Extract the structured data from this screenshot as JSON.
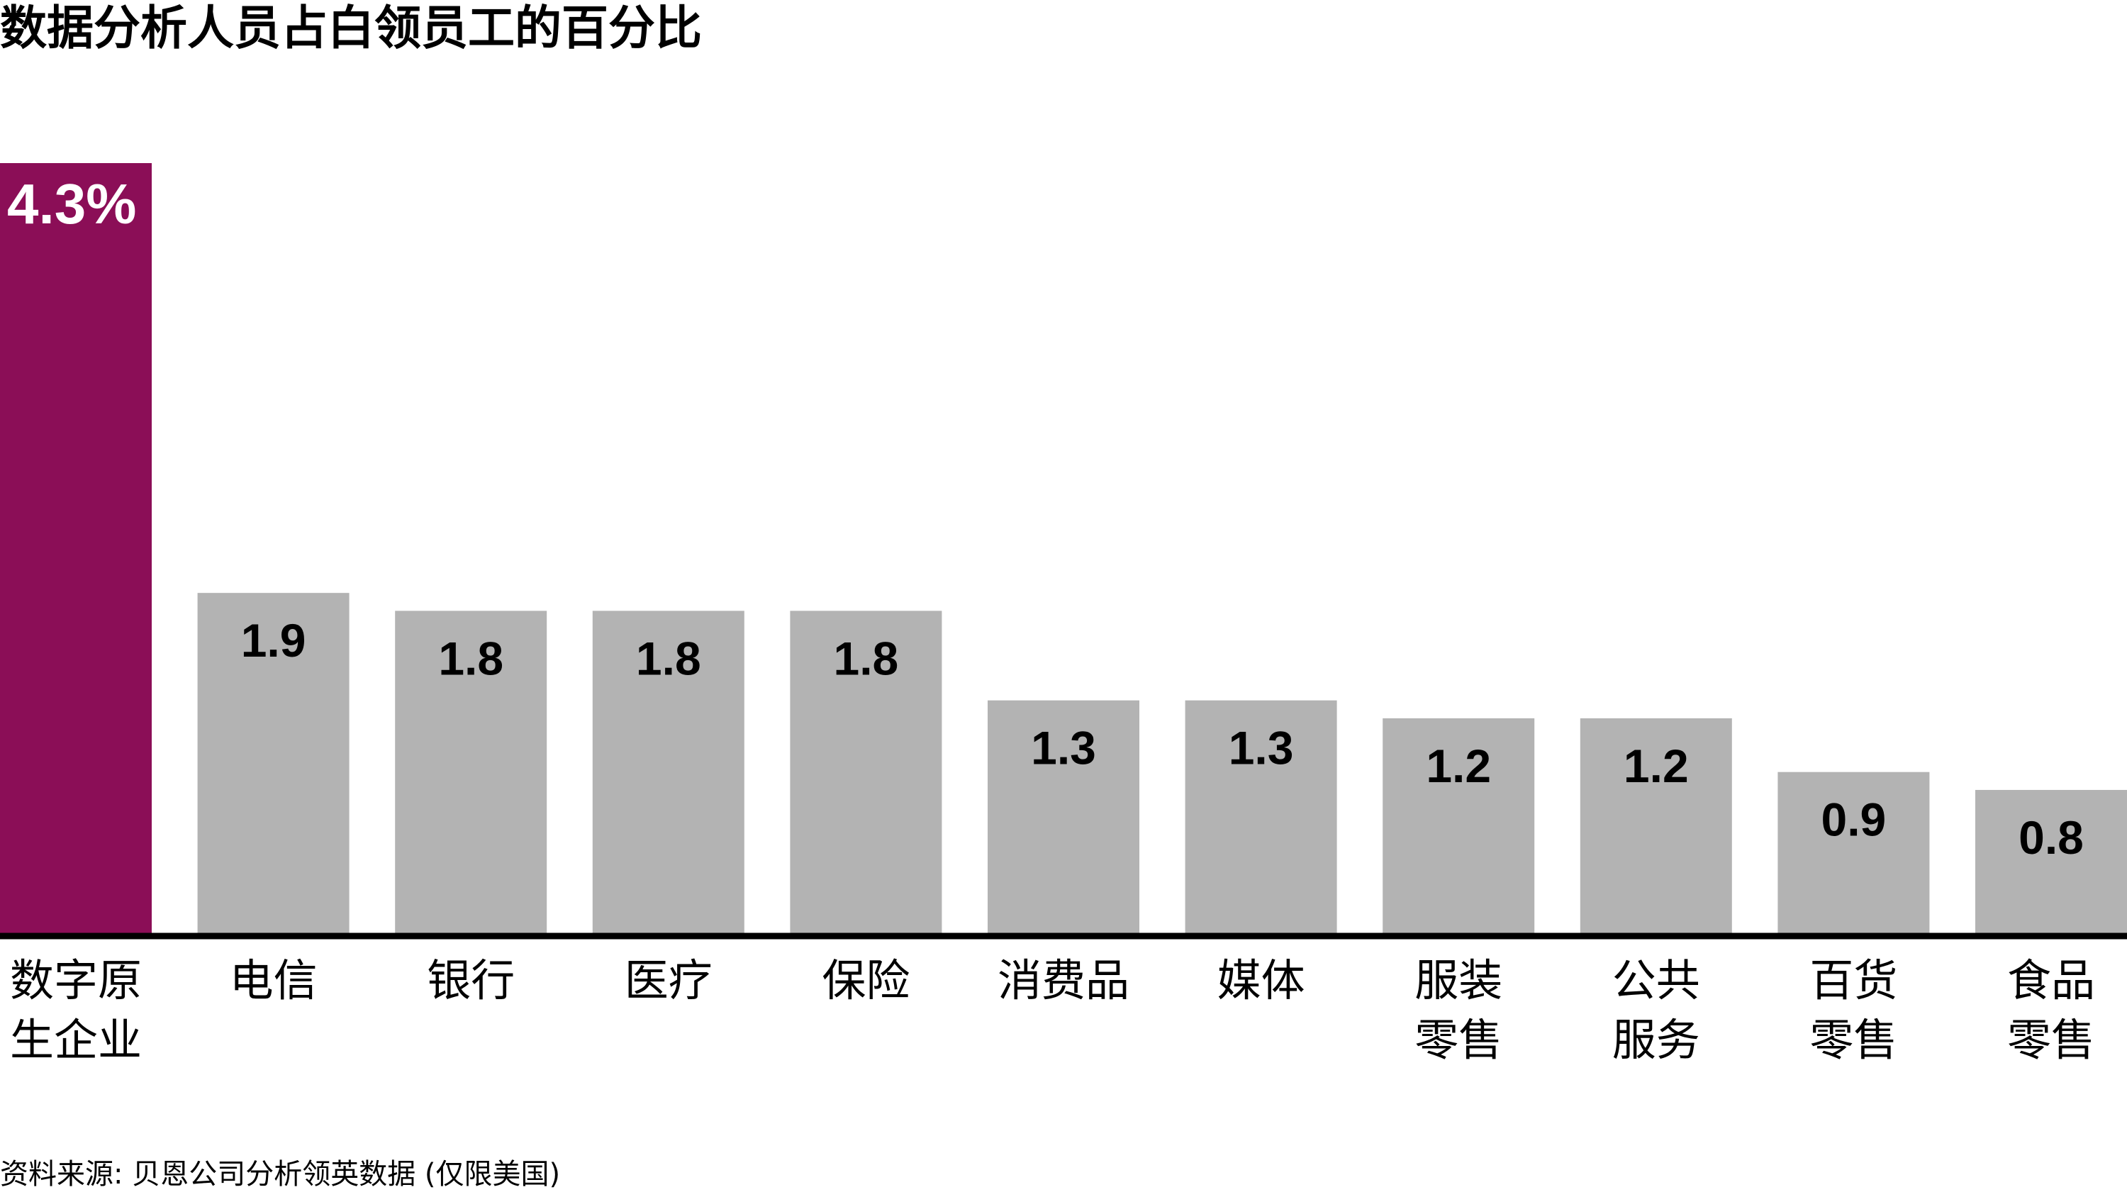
{
  "title": "数据分析人员占白领员工的百分比",
  "source": "资料来源: 贝恩公司分析领英数据 (仅限美国)",
  "colors": {
    "highlight": "#8B0E57",
    "bar": "#B3B3B3",
    "axis": "#000000",
    "highlight_label": "#FFFFFF",
    "bar_label": "#000000"
  },
  "chart_data": {
    "type": "bar",
    "title": "数据分析人员占白领员工的百分比",
    "categories": [
      [
        "数字原",
        "生企业"
      ],
      [
        "电信"
      ],
      [
        "银行"
      ],
      [
        "医疗"
      ],
      [
        "保险"
      ],
      [
        "消费品"
      ],
      [
        "媒体"
      ],
      [
        "服装",
        "零售"
      ],
      [
        "公共",
        "服务"
      ],
      [
        "百货",
        "零售"
      ],
      [
        "食品",
        "零售"
      ]
    ],
    "values": [
      4.3,
      1.9,
      1.8,
      1.8,
      1.8,
      1.3,
      1.3,
      1.2,
      1.2,
      0.9,
      0.8
    ],
    "labels": [
      "4.3%",
      "1.9",
      "1.8",
      "1.8",
      "1.8",
      "1.3",
      "1.3",
      "1.2",
      "1.2",
      "0.9",
      "0.8"
    ],
    "highlight_index": 0,
    "ylim": [
      0,
      4.3
    ],
    "grid": false,
    "xlabel": "",
    "ylabel": ""
  }
}
